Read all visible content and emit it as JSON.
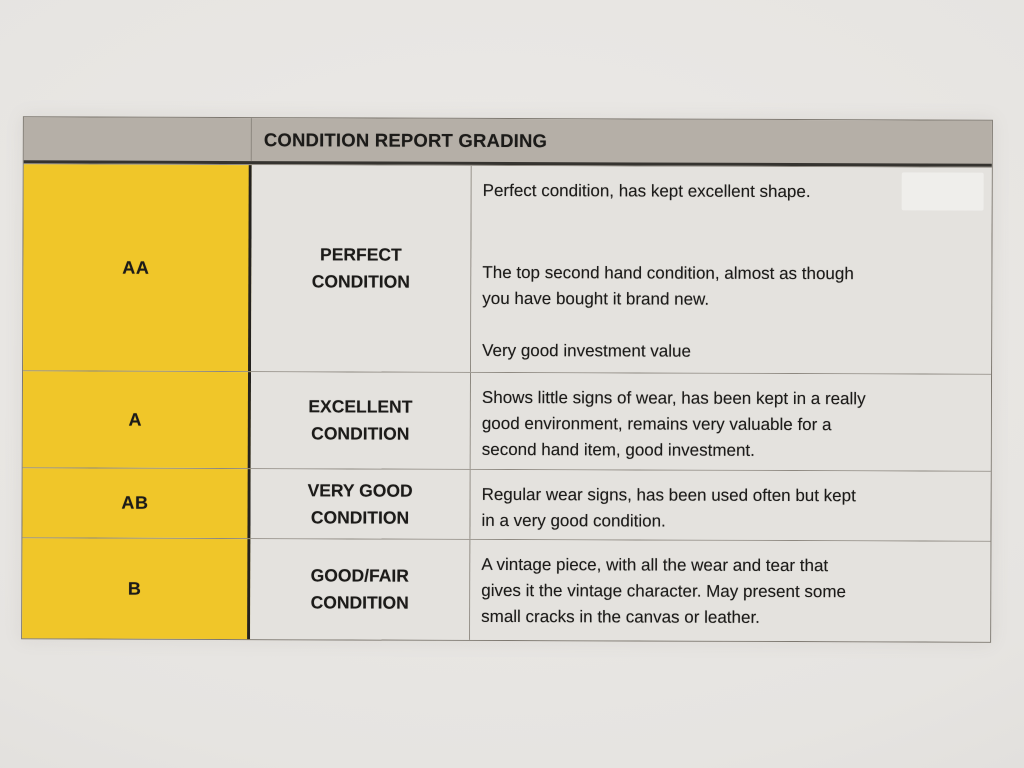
{
  "document": {
    "title": "CONDITION REPORT GRADING"
  },
  "colors": {
    "page_background": "#ECEAE7",
    "header_bar": "#B5AFA7",
    "grade_column": "#F0C629",
    "cell_background": "#E4E2DE",
    "text": "#1C1B19"
  },
  "rows": [
    {
      "grade": "AA",
      "condition": "PERFECT\nCONDITION",
      "paragraphs": [
        "Perfect condition, has kept excellent shape.",
        "The top second hand condition, almost as though\nyou have bought it brand new.",
        "Very good investment value"
      ]
    },
    {
      "grade": "A",
      "condition": "EXCELLENT\nCONDITION",
      "paragraphs": [
        "Shows little signs of wear, has been kept in a really\ngood environment, remains very valuable for a\nsecond hand item, good investment."
      ]
    },
    {
      "grade": "AB",
      "condition": "VERY GOOD\nCONDITION",
      "paragraphs": [
        "Regular wear signs, has been used often but kept\nin a very good condition."
      ]
    },
    {
      "grade": "B",
      "condition": "GOOD/FAIR\nCONDITION",
      "paragraphs": [
        "A vintage piece, with all the wear and tear that\ngives it the vintage character. May present some\nsmall cracks in the canvas or leather."
      ]
    }
  ]
}
